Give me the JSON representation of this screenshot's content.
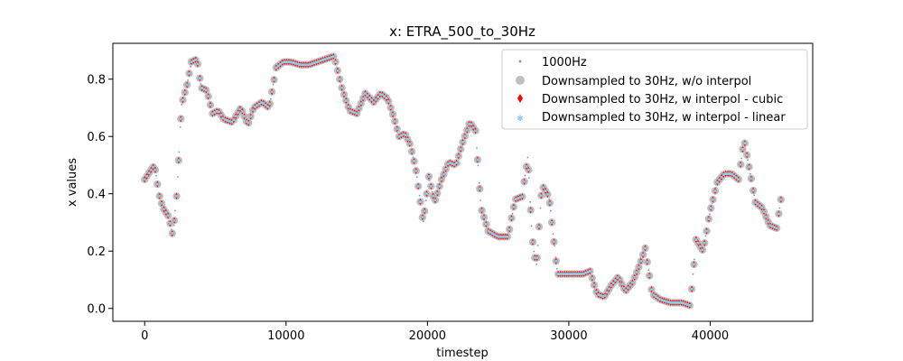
{
  "chart_data": {
    "type": "scatter",
    "title": "x: ETRA_500_to_30Hz",
    "xlabel": "timestep",
    "ylabel": "x values",
    "xlim": [
      -2250,
      47250
    ],
    "ylim": [
      -0.045,
      0.925
    ],
    "xticks": [
      0,
      10000,
      20000,
      30000,
      40000
    ],
    "xtick_labels": [
      "0",
      "10000",
      "20000",
      "30000",
      "40000"
    ],
    "yticks": [
      0.0,
      0.2,
      0.4,
      0.6,
      0.8
    ],
    "ytick_labels": [
      "0.0",
      "0.2",
      "0.4",
      "0.6",
      "0.8"
    ],
    "grid": false,
    "legend_position": "top-right",
    "legend": [
      "1000Hz",
      "Downsampled to 30Hz, w/o interpol",
      "Downsampled to 30Hz, w interpol - cubic",
      "Downsampled to 30Hz, w interpol - linear"
    ],
    "series": [
      {
        "name": "1000Hz",
        "color": "#6495ed",
        "marker": "point",
        "x": [
          0,
          400,
          700,
          1000,
          1300,
          1700,
          2000,
          2300,
          2600,
          3000,
          3300,
          3700,
          4000,
          4400,
          4800,
          5200,
          5600,
          6200,
          6800,
          7300,
          7700,
          8300,
          8800,
          9300,
          9800,
          10300,
          11000,
          11600,
          12200,
          12800,
          13400,
          14000,
          14500,
          15000,
          15600,
          16200,
          16700,
          17200,
          17600,
          18000,
          18400,
          18800,
          19200,
          19700,
          20100,
          20500,
          21000,
          21500,
          22000,
          22500,
          23000,
          23400,
          23800,
          24300,
          25000,
          25700,
          26200,
          26700,
          27100,
          27400,
          27700,
          28100,
          28600,
          29200,
          30000,
          31000,
          31500,
          32000,
          32500,
          33000,
          33500,
          34000,
          34500,
          35000,
          35400,
          35900,
          36500,
          37200,
          38000,
          38600,
          39000,
          39500,
          40000,
          40500,
          41000,
          41500,
          42000,
          42400,
          42800,
          43200,
          43700,
          44200,
          44700,
          45000
        ],
        "y": [
          0.45,
          0.48,
          0.5,
          0.4,
          0.35,
          0.32,
          0.25,
          0.42,
          0.71,
          0.78,
          0.86,
          0.87,
          0.77,
          0.76,
          0.68,
          0.69,
          0.66,
          0.65,
          0.7,
          0.64,
          0.7,
          0.72,
          0.7,
          0.84,
          0.86,
          0.86,
          0.85,
          0.85,
          0.86,
          0.87,
          0.88,
          0.76,
          0.69,
          0.68,
          0.75,
          0.72,
          0.75,
          0.73,
          0.67,
          0.6,
          0.61,
          0.57,
          0.48,
          0.3,
          0.46,
          0.37,
          0.45,
          0.51,
          0.5,
          0.58,
          0.65,
          0.62,
          0.35,
          0.27,
          0.25,
          0.25,
          0.38,
          0.39,
          0.53,
          0.25,
          0.14,
          0.43,
          0.39,
          0.12,
          0.12,
          0.12,
          0.13,
          0.05,
          0.04,
          0.08,
          0.11,
          0.06,
          0.09,
          0.15,
          0.21,
          0.05,
          0.03,
          0.02,
          0.02,
          0.01,
          0.24,
          0.2,
          0.34,
          0.44,
          0.47,
          0.47,
          0.45,
          0.59,
          0.48,
          0.37,
          0.35,
          0.29,
          0.28,
          0.38
        ]
      },
      {
        "name": "Downsampled to 30Hz, w/o interpol",
        "color": "#bfbfbf",
        "marker": "circle"
      },
      {
        "name": "Downsampled to 30Hz, w interpol - cubic",
        "color": "#ff0000",
        "marker": "diamond"
      },
      {
        "name": "Downsampled to 30Hz, w interpol - linear",
        "color": "#87ceeb",
        "marker": "star"
      }
    ]
  }
}
